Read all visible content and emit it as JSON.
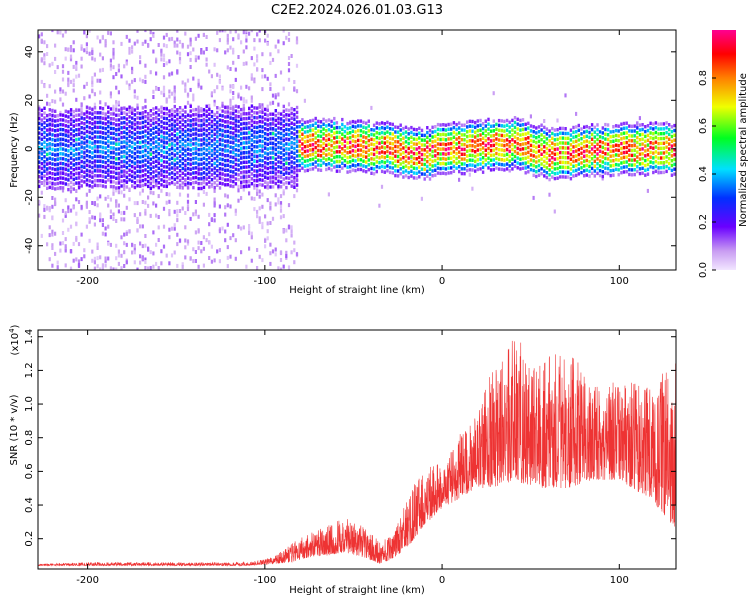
{
  "title": "C2E2.2024.026.01.03.G13",
  "chart_data": [
    {
      "type": "heatmap",
      "name": "spectrogram",
      "xlabel": "Height of straight line (km)",
      "ylabel": "Frequency (Hz)",
      "xlim": [
        -228,
        132
      ],
      "ylim": [
        -50,
        49
      ],
      "xticks": [
        -200,
        -100,
        0,
        100
      ],
      "yticks": [
        -40,
        -20,
        0,
        20,
        40
      ],
      "colorbar": {
        "label": "Normalized spectral amplitude",
        "range": [
          0,
          1
        ],
        "ticks": [
          0.0,
          0.2,
          0.4,
          0.6,
          0.8
        ],
        "tick_labels": [
          "0.0",
          "0.2",
          "0.4",
          "0.6",
          "0.8"
        ],
        "colormap": "purple-blue-cyan-green-yellow-red-magenta"
      },
      "ridge": {
        "description": "dominant energy band near 0 Hz; broadband noise below -82 km",
        "noise_cutoff_x": -82,
        "points": [
          [
            -228,
            0
          ],
          [
            -82,
            1
          ],
          [
            -70,
            2
          ],
          [
            -50,
            1
          ],
          [
            -30,
            0
          ],
          [
            -10,
            -2
          ],
          [
            0,
            0
          ],
          [
            20,
            1
          ],
          [
            40,
            2
          ],
          [
            60,
            -2
          ],
          [
            80,
            -1
          ],
          [
            100,
            0
          ],
          [
            132,
            0
          ]
        ]
      }
    },
    {
      "type": "line",
      "name": "snr",
      "xlabel": "Height of straight line (km)",
      "ylabel": "SNR (10 * v/v)",
      "y_multiplier": "(x10⁴)",
      "y_multiplier_base": "(x10",
      "y_multiplier_exp": "4",
      "y_multiplier_close": ")",
      "xlim": [
        -228,
        132
      ],
      "ylim": [
        0.02,
        1.44
      ],
      "xticks": [
        -200,
        -100,
        0,
        100
      ],
      "yticks": [
        0.2,
        0.4,
        0.6,
        0.8,
        1.0,
        1.2,
        1.4
      ],
      "ytick_labels": [
        "0.2",
        "0.4",
        "0.6",
        "0.8",
        "1.0",
        "1.2",
        "1.4"
      ],
      "color": "#ee3333",
      "series": [
        {
          "name": "SNR",
          "envelope": [
            [
              -228,
              0.04,
              0.05
            ],
            [
              -200,
              0.04,
              0.06
            ],
            [
              -150,
              0.04,
              0.06
            ],
            [
              -110,
              0.04,
              0.06
            ],
            [
              -95,
              0.05,
              0.09
            ],
            [
              -85,
              0.06,
              0.17
            ],
            [
              -75,
              0.09,
              0.24
            ],
            [
              -65,
              0.1,
              0.28
            ],
            [
              -55,
              0.12,
              0.33
            ],
            [
              -45,
              0.09,
              0.28
            ],
            [
              -35,
              0.05,
              0.18
            ],
            [
              -28,
              0.08,
              0.22
            ],
            [
              -20,
              0.14,
              0.45
            ],
            [
              -10,
              0.28,
              0.62
            ],
            [
              0,
              0.38,
              0.66
            ],
            [
              10,
              0.44,
              0.82
            ],
            [
              18,
              0.5,
              0.95
            ],
            [
              25,
              0.5,
              1.15
            ],
            [
              35,
              0.52,
              1.3
            ],
            [
              42,
              0.55,
              1.44
            ],
            [
              50,
              0.5,
              1.2
            ],
            [
              60,
              0.5,
              1.28
            ],
            [
              72,
              0.5,
              1.35
            ],
            [
              85,
              0.55,
              1.1
            ],
            [
              100,
              0.55,
              1.15
            ],
            [
              115,
              0.45,
              1.1
            ],
            [
              125,
              0.35,
              1.2
            ],
            [
              132,
              0.25,
              1.25
            ]
          ]
        }
      ]
    }
  ]
}
